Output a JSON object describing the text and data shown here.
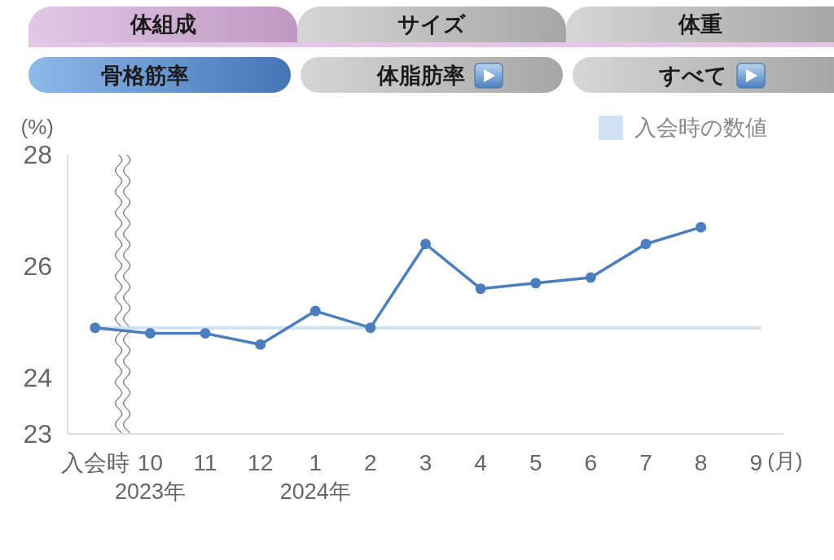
{
  "chart_data": [
    {
      "type": "other",
      "annotations": [
        "体組成",
        "サイズ",
        "体重",
        "骨格筋率",
        "体脂肪率",
        "すべて"
      ]
    },
    {
      "type": "line",
      "ylabel": "(%)",
      "xlabel": "(月)",
      "categories": [
        "入会時",
        "10",
        "11",
        "12",
        "1",
        "2",
        "3",
        "4",
        "5",
        "6",
        "7",
        "8",
        "9"
      ],
      "series": [
        {
          "color": "#4a7ebf",
          "values": [
            24.9,
            24.8,
            24.8,
            24.6,
            25.2,
            24.9,
            26.4,
            25.6,
            25.7,
            25.8,
            26.4,
            26.7,
            null
          ]
        }
      ],
      "ylim": [
        23,
        28
      ],
      "yticks": [
        23,
        24,
        26,
        28
      ],
      "marker": "circle",
      "legend": "top right",
      "ref_lines": [
        {
          "axis": "y",
          "value": 24.9,
          "label": "入会時の数値",
          "color": "#cfe2f3"
        }
      ],
      "annotations": [
        "2023年",
        "2024年"
      ]
    }
  ]
}
